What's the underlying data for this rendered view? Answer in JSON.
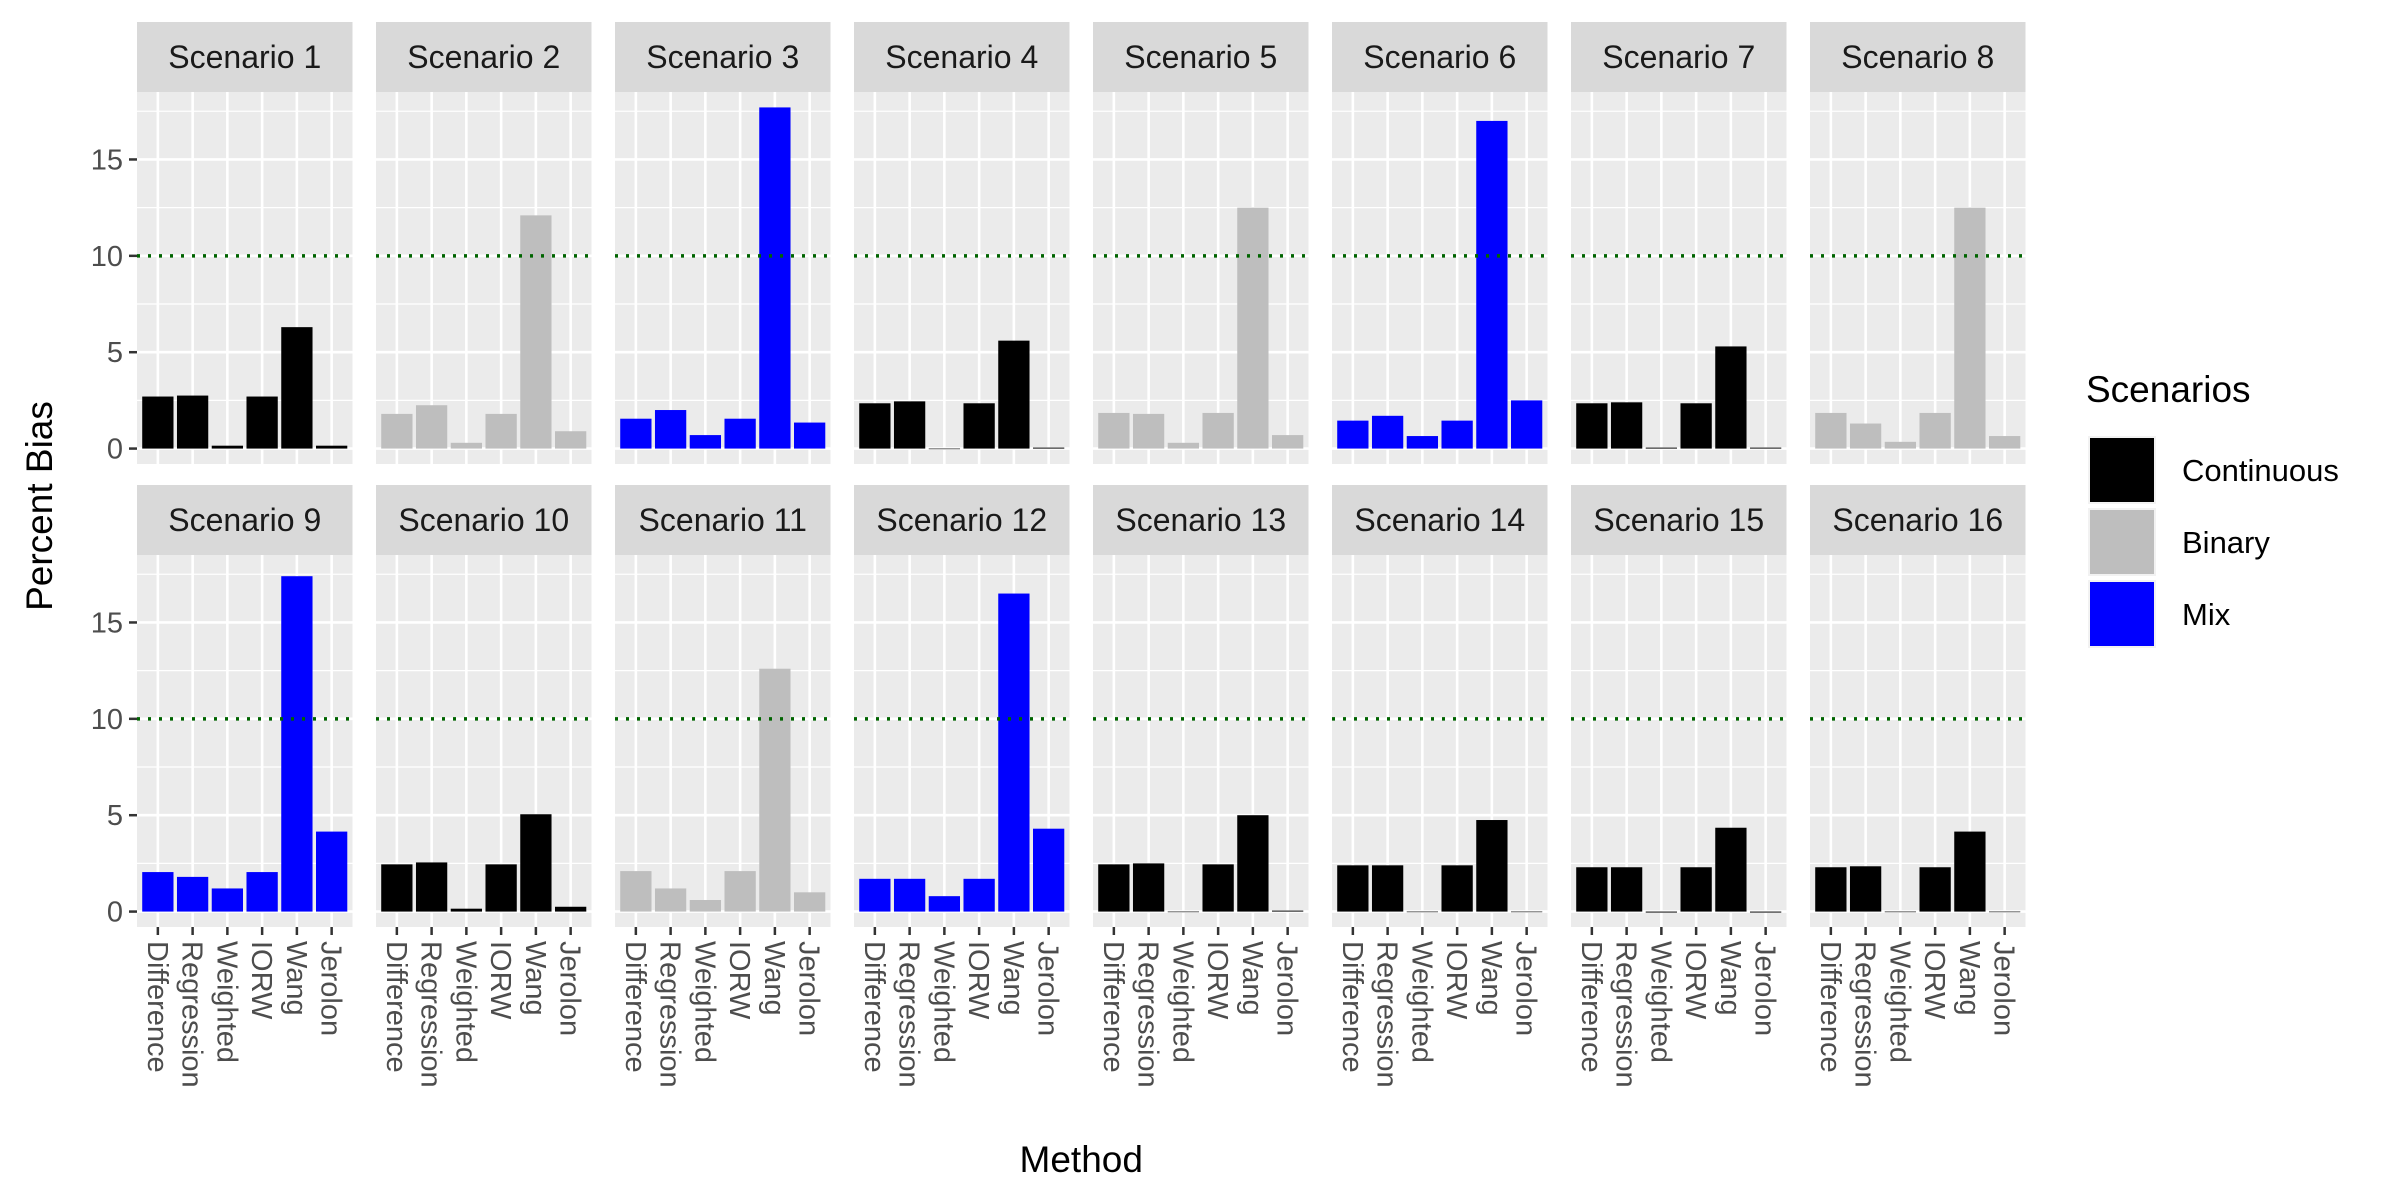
{
  "chart_data": {
    "type": "bar",
    "xlabel": "Method",
    "ylabel": "Percent Bias",
    "ylim": [
      -0.8,
      18.5
    ],
    "yticks": [
      0,
      5,
      10,
      15
    ],
    "reference_line": {
      "value": 10,
      "color": "#006400",
      "style": "dotted"
    },
    "categories": [
      "Difference",
      "Regression",
      "Weighted",
      "IORW",
      "Wang",
      "Jerolon"
    ],
    "legend": {
      "title": "Scenarios",
      "entries": [
        {
          "name": "Continuous",
          "color": "#000000"
        },
        {
          "name": "Binary",
          "color": "#bebebe"
        },
        {
          "name": "Mix",
          "color": "#0000ff"
        }
      ]
    },
    "facets": [
      {
        "label": "Scenario 1",
        "group": "Continuous",
        "values": [
          2.7,
          2.75,
          0.15,
          2.7,
          6.3,
          0.15
        ]
      },
      {
        "label": "Scenario 2",
        "group": "Binary",
        "values": [
          1.8,
          2.25,
          0.3,
          1.8,
          12.1,
          0.9
        ]
      },
      {
        "label": "Scenario 3",
        "group": "Mix",
        "values": [
          1.55,
          2.0,
          0.7,
          1.55,
          17.7,
          1.35
        ]
      },
      {
        "label": "Scenario 4",
        "group": "Continuous",
        "values": [
          2.35,
          2.45,
          0.0,
          2.35,
          5.6,
          0.05
        ]
      },
      {
        "label": "Scenario 5",
        "group": "Binary",
        "values": [
          1.85,
          1.8,
          0.3,
          1.85,
          12.5,
          0.7
        ]
      },
      {
        "label": "Scenario 6",
        "group": "Mix",
        "values": [
          1.45,
          1.7,
          0.65,
          1.45,
          17.0,
          2.5
        ]
      },
      {
        "label": "Scenario 7",
        "group": "Continuous",
        "values": [
          2.35,
          2.4,
          0.05,
          2.35,
          5.3,
          0.05
        ]
      },
      {
        "label": "Scenario 8",
        "group": "Binary",
        "values": [
          1.85,
          1.3,
          0.35,
          1.85,
          12.5,
          0.65
        ]
      },
      {
        "label": "Scenario 9",
        "group": "Mix",
        "values": [
          2.05,
          1.8,
          1.2,
          2.05,
          17.4,
          4.15
        ]
      },
      {
        "label": "Scenario 10",
        "group": "Continuous",
        "values": [
          2.45,
          2.55,
          0.15,
          2.45,
          5.05,
          0.25
        ]
      },
      {
        "label": "Scenario 11",
        "group": "Binary",
        "values": [
          2.1,
          1.2,
          0.6,
          2.1,
          12.6,
          1.0
        ]
      },
      {
        "label": "Scenario 12",
        "group": "Mix",
        "values": [
          1.7,
          1.7,
          0.8,
          1.7,
          16.5,
          4.3
        ]
      },
      {
        "label": "Scenario 13",
        "group": "Continuous",
        "values": [
          2.45,
          2.5,
          0.0,
          2.45,
          5.0,
          0.05
        ]
      },
      {
        "label": "Scenario 14",
        "group": "Continuous",
        "values": [
          2.4,
          2.4,
          0.0,
          2.4,
          4.75,
          0.0
        ]
      },
      {
        "label": "Scenario 15",
        "group": "Continuous",
        "values": [
          2.3,
          2.3,
          -0.05,
          2.3,
          4.35,
          -0.05
        ]
      },
      {
        "label": "Scenario 16",
        "group": "Continuous",
        "values": [
          2.3,
          2.35,
          0.0,
          2.3,
          4.15,
          0.0
        ]
      }
    ]
  }
}
